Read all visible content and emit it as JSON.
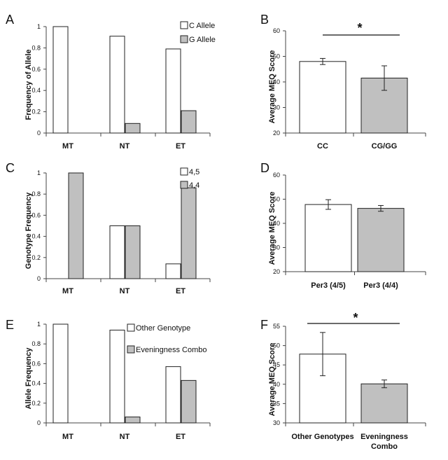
{
  "colors": {
    "white_bar": "#ffffff",
    "gray_bar": "#c0c0c0",
    "stroke": "#222222"
  },
  "chart_data": [
    {
      "panel": "A",
      "type": "bar",
      "ylabel": "Frequency of Allele",
      "ylim": [
        0,
        1
      ],
      "yticks": [
        0,
        0.2,
        0.4,
        0.6,
        0.8,
        1
      ],
      "yticklabels": [
        "0",
        "0.2",
        "0.4",
        "0.6",
        "0.8",
        "1"
      ],
      "categories": [
        "MT",
        "NT",
        "ET"
      ],
      "series": [
        {
          "name": "C Allele",
          "color": "#ffffff",
          "values": [
            1.0,
            0.91,
            0.79
          ]
        },
        {
          "name": "G Allele",
          "color": "#c0c0c0",
          "values": [
            0.0,
            0.09,
            0.21
          ]
        }
      ],
      "legend": "top-right"
    },
    {
      "panel": "B",
      "type": "bar",
      "ylabel": "Average MEQ Score",
      "ylim": [
        20,
        60
      ],
      "yticks": [
        20,
        30,
        40,
        50,
        60
      ],
      "yticklabels": [
        "20",
        "30",
        "40",
        "50",
        "60"
      ],
      "categories": [
        "CC",
        "CG/GG"
      ],
      "series": [
        {
          "name": "MEQ",
          "colors": [
            "#ffffff",
            "#c0c0c0"
          ],
          "values": [
            48,
            41.5
          ],
          "errors": [
            1.2,
            4.8
          ]
        }
      ],
      "significance": "*"
    },
    {
      "panel": "C",
      "type": "bar",
      "ylabel": "Genotype Frequency",
      "ylim": [
        0,
        1
      ],
      "yticks": [
        0,
        0.2,
        0.4,
        0.6,
        0.8,
        1
      ],
      "yticklabels": [
        "0",
        "0.2",
        "0.4",
        "0.6",
        "0.8",
        "1"
      ],
      "categories": [
        "MT",
        "NT",
        "ET"
      ],
      "series": [
        {
          "name": "4,5",
          "color": "#ffffff",
          "values": [
            0.0,
            0.5,
            0.14
          ]
        },
        {
          "name": "4,4",
          "color": "#c0c0c0",
          "values": [
            1.0,
            0.5,
            0.86
          ]
        }
      ],
      "legend": "top-right"
    },
    {
      "panel": "D",
      "type": "bar",
      "ylabel": "Average MEQ Score",
      "ylim": [
        20,
        60
      ],
      "yticks": [
        20,
        30,
        40,
        50,
        60
      ],
      "yticklabels": [
        "20",
        "30",
        "40",
        "50",
        "60"
      ],
      "categories": [
        "Per3 (4/5)",
        "Per3 (4/4)"
      ],
      "series": [
        {
          "name": "MEQ",
          "colors": [
            "#ffffff",
            "#c0c0c0"
          ],
          "values": [
            47.8,
            46.2
          ],
          "errors": [
            2.0,
            1.2
          ]
        }
      ]
    },
    {
      "panel": "E",
      "type": "bar",
      "ylabel": "Allele Frequency",
      "ylim": [
        0,
        1
      ],
      "yticks": [
        0,
        0.2,
        0.4,
        0.6,
        0.8,
        1
      ],
      "yticklabels": [
        "0",
        "0.2",
        "0.4",
        "0.6",
        "0.8",
        "1"
      ],
      "categories": [
        "MT",
        "NT",
        "ET"
      ],
      "series": [
        {
          "name": "Other Genotype",
          "color": "#ffffff",
          "values": [
            1.0,
            0.94,
            0.57
          ]
        },
        {
          "name": "Eveningness Combo",
          "color": "#c0c0c0",
          "values": [
            0.0,
            0.06,
            0.43
          ]
        }
      ],
      "legend": "top-right"
    },
    {
      "panel": "F",
      "type": "bar",
      "ylabel": "Average MEQ Score",
      "ylim": [
        30,
        55
      ],
      "yticks": [
        30,
        35,
        40,
        45,
        50,
        55
      ],
      "yticklabels": [
        "30",
        "35",
        "40",
        "45",
        "50",
        "55"
      ],
      "categories": [
        [
          "Other Genotypes"
        ],
        [
          "Eveningness",
          "Combo"
        ]
      ],
      "series": [
        {
          "name": "MEQ",
          "colors": [
            "#ffffff",
            "#c0c0c0"
          ],
          "values": [
            47.8,
            40.1
          ],
          "errors": [
            5.6,
            1.0
          ]
        }
      ],
      "significance": "*"
    }
  ]
}
